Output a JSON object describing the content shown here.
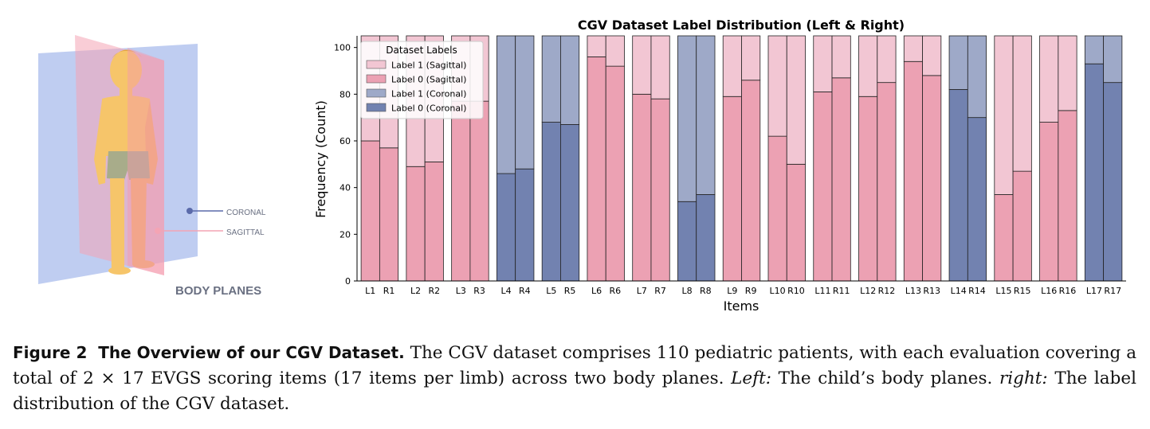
{
  "illustration": {
    "coronal_label": "CORONAL",
    "sagittal_label": "SAGITTAL",
    "title": "BODY PLANES"
  },
  "chart_data": {
    "type": "bar",
    "stacked": true,
    "title": "CGV Dataset Label Distribution (Left & Right)",
    "xlabel": "Items",
    "ylabel": "Frequency (Count)",
    "ylim": [
      0,
      105
    ],
    "yticks": [
      0,
      20,
      40,
      60,
      80,
      100
    ],
    "legend_title": "Dataset Labels",
    "legend_position": "top-left",
    "legend": [
      {
        "label": "Label 1 (Sagittal)",
        "color": "#f2c6d3"
      },
      {
        "label": "Label 0 (Sagittal)",
        "color": "#eca1b3"
      },
      {
        "label": "Label 1 (Coronal)",
        "color": "#9ea9c8"
      },
      {
        "label": "Label 0 (Coronal)",
        "color": "#7282b0"
      }
    ],
    "total": 105,
    "categories": [
      "L1",
      "R1",
      "L2",
      "R2",
      "L3",
      "R3",
      "L4",
      "R4",
      "L5",
      "R5",
      "L6",
      "R6",
      "L7",
      "R7",
      "L8",
      "R8",
      "L9",
      "R9",
      "L10",
      "R10",
      "L11",
      "R11",
      "L12",
      "R12",
      "L13",
      "R13",
      "L14",
      "R14",
      "L15",
      "R15",
      "L16",
      "R16",
      "L17",
      "R17"
    ],
    "label0_values": [
      60,
      57,
      49,
      51,
      77,
      77,
      46,
      48,
      68,
      67,
      96,
      92,
      80,
      78,
      34,
      37,
      79,
      86,
      62,
      50,
      81,
      87,
      79,
      85,
      94,
      88,
      82,
      70,
      37,
      47,
      68,
      73,
      93,
      85
    ],
    "plane": [
      "S",
      "S",
      "S",
      "S",
      "S",
      "S",
      "C",
      "C",
      "C",
      "C",
      "S",
      "S",
      "S",
      "S",
      "C",
      "C",
      "S",
      "S",
      "S",
      "S",
      "S",
      "S",
      "S",
      "S",
      "S",
      "S",
      "C",
      "C",
      "S",
      "S",
      "S",
      "S",
      "C",
      "C"
    ]
  },
  "caption": {
    "label": "Figure 2",
    "title": "The Overview of our CGV Dataset.",
    "text1": "The CGV dataset comprises 110 pediatric patients, with each evaluation covering a total of 2 × 17 EVGS scoring items (17 items per limb) across two body planes.",
    "left_label": "Left:",
    "text2": "The child’s body planes.",
    "right_label": "right:",
    "text3": "The label distribution of the CGV dataset."
  }
}
